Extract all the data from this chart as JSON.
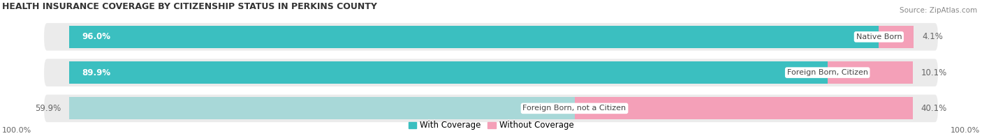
{
  "title": "HEALTH INSURANCE COVERAGE BY CITIZENSHIP STATUS IN PERKINS COUNTY",
  "source": "Source: ZipAtlas.com",
  "categories": [
    "Native Born",
    "Foreign Born, Citizen",
    "Foreign Born, not a Citizen"
  ],
  "with_coverage": [
    96.0,
    89.9,
    59.9
  ],
  "without_coverage": [
    4.1,
    10.1,
    40.1
  ],
  "color_with_strong": "#3BBFC0",
  "color_with_light": "#A8D8D8",
  "color_without": "#F4A0B8",
  "color_bg_bar": "#EBEBEB",
  "title_fontsize": 9,
  "source_fontsize": 7.5,
  "label_fontsize": 8.5,
  "axis_label_fontsize": 8,
  "legend_fontsize": 8.5,
  "figsize": [
    14.06,
    1.95
  ],
  "dpi": 100,
  "x_left_label": "100.0%",
  "x_right_label": "100.0%"
}
